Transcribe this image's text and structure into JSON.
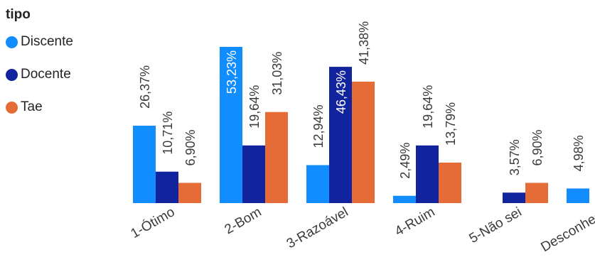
{
  "legend": {
    "title": "tipo"
  },
  "chart_data": {
    "type": "bar",
    "categories": [
      "1-Ótimo",
      "2-Bom",
      "3-Razoável",
      "4-Ruim",
      "5-Não sei",
      "Desconheço"
    ],
    "series": [
      {
        "name": "Discente",
        "color": "#118DFF",
        "values": [
          26.37,
          53.23,
          12.94,
          2.49,
          null,
          4.98
        ],
        "labels": [
          "26,37%",
          "53,23%",
          "12,94%",
          "2,49%",
          "",
          "4,98%"
        ]
      },
      {
        "name": "Docente",
        "color": "#12239E",
        "values": [
          10.71,
          19.64,
          46.43,
          19.64,
          3.57,
          null
        ],
        "labels": [
          "10,71%",
          "19,64%",
          "46,43%",
          "19,64%",
          "3,57%",
          ""
        ]
      },
      {
        "name": "Tae",
        "color": "#E66C37",
        "values": [
          6.9,
          31.03,
          41.38,
          13.79,
          6.9,
          null
        ],
        "labels": [
          "6,90%",
          "31,03%",
          "41,38%",
          "13,79%",
          "6,90%",
          ""
        ]
      }
    ],
    "inside_labels": [
      [
        1,
        0
      ],
      [
        2,
        1
      ]
    ],
    "ylim": [
      0,
      53.23
    ]
  }
}
